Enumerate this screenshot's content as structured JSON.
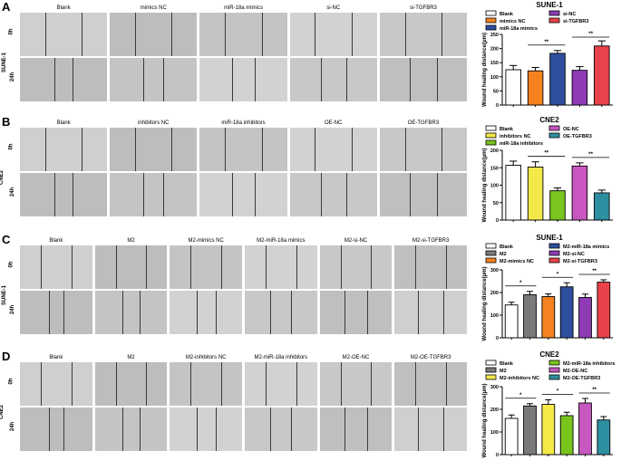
{
  "panels": [
    {
      "letter": "A",
      "cell_line": "SUNE-1",
      "rows": [
        "0h",
        "24h"
      ],
      "columns": [
        "Blank",
        "mimics NC",
        "miR-18a mimics",
        "si-NC",
        "si-TGFBR3"
      ]
    },
    {
      "letter": "B",
      "cell_line": "CNE2",
      "rows": [
        "0h",
        "24h"
      ],
      "columns": [
        "Blank",
        "inhibitors NC",
        "miR-18a inhibitors",
        "OE-NC",
        "OE-TGFBR3"
      ]
    },
    {
      "letter": "C",
      "cell_line": "SUNE-1",
      "rows": [
        "0h",
        "24h"
      ],
      "columns": [
        "Blank",
        "M2",
        "M2-mimics NC",
        "M2-miR-18a mimics",
        "M2-si-NC",
        "M2-si-TGFBR3"
      ]
    },
    {
      "letter": "D",
      "cell_line": "CNE2",
      "rows": [
        "0h",
        "24h"
      ],
      "columns": [
        "Blank",
        "M2",
        "M2-inhibitors NC",
        "M2-miR-18a inhibitors",
        "M2-OE-NC",
        "M2-OE-TGFBR3"
      ]
    }
  ],
  "chart_data": [
    {
      "type": "bar",
      "title": "SUNE-1",
      "ylabel": "Wound healing distance(μm)",
      "ylim": [
        0,
        250
      ],
      "yticks": [
        0,
        50,
        100,
        150,
        200,
        250
      ],
      "categories": [
        "Blank",
        "mimics NC",
        "miR-18a mimics",
        "si-NC",
        "si-TGFBR3"
      ],
      "values": [
        125,
        121,
        183,
        123,
        209
      ],
      "errors": [
        15,
        12,
        10,
        13,
        18
      ],
      "colors": [
        "#ffffff",
        "#f5821f",
        "#2e4f9e",
        "#8e3bb5",
        "#e8424a"
      ],
      "significance": [
        {
          "from": 1,
          "to": 2,
          "label": "**"
        },
        {
          "from": 3,
          "to": 4,
          "label": "**"
        }
      ]
    },
    {
      "type": "bar",
      "title": "CNE2",
      "ylabel": "Wound healing distance(μm)",
      "ylim": [
        0,
        200
      ],
      "yticks": [
        0,
        50,
        100,
        150,
        200
      ],
      "categories": [
        "Blank",
        "inhibitors NC",
        "miR-18a inhibitors",
        "OE-NC",
        "OE-TGFBR3"
      ],
      "values": [
        157,
        152,
        84,
        155,
        78
      ],
      "errors": [
        12,
        15,
        8,
        9,
        8
      ],
      "colors": [
        "#ffffff",
        "#f5e94a",
        "#7ac41e",
        "#c957c0",
        "#2e8fa0"
      ],
      "significance": [
        {
          "from": 1,
          "to": 2,
          "label": "**"
        },
        {
          "from": 3,
          "to": 4,
          "label": "**"
        }
      ]
    },
    {
      "type": "bar",
      "title": "SUNE-1",
      "ylabel": "Wound healing distance(μm)",
      "ylim": [
        0,
        300
      ],
      "yticks": [
        0,
        100,
        200,
        300
      ],
      "categories": [
        "Blank",
        "M2",
        "M2-mimics NC",
        "M2-miR-18a mimics",
        "M2-si-NC",
        "M2-si-TGFBR3"
      ],
      "values": [
        145,
        190,
        182,
        225,
        178,
        246
      ],
      "errors": [
        12,
        15,
        12,
        18,
        15,
        10
      ],
      "colors": [
        "#ffffff",
        "#7a7a7a",
        "#f5821f",
        "#2e4f9e",
        "#8e3bb5",
        "#e8424a"
      ],
      "significance": [
        {
          "from": 0,
          "to": 1,
          "label": "*"
        },
        {
          "from": 2,
          "to": 3,
          "label": "*"
        },
        {
          "from": 4,
          "to": 5,
          "label": "**"
        }
      ]
    },
    {
      "type": "bar",
      "title": "CNE2",
      "ylabel": "Wound healing distance(μm)",
      "ylim": [
        0,
        300
      ],
      "yticks": [
        0,
        100,
        200,
        300
      ],
      "categories": [
        "Blank",
        "M2",
        "M2-inhibitors NC",
        "M2-miR-18a inhibitors",
        "M2-OE-NC",
        "M2-OE-TGFBR3"
      ],
      "values": [
        160,
        215,
        222,
        172,
        228,
        153
      ],
      "errors": [
        15,
        10,
        20,
        15,
        20,
        15
      ],
      "colors": [
        "#ffffff",
        "#7a7a7a",
        "#f5e94a",
        "#7ac41e",
        "#c957c0",
        "#2e8fa0"
      ],
      "significance": [
        {
          "from": 0,
          "to": 1,
          "label": "*"
        },
        {
          "from": 2,
          "to": 3,
          "label": "*"
        },
        {
          "from": 4,
          "to": 5,
          "label": "**"
        }
      ]
    }
  ]
}
